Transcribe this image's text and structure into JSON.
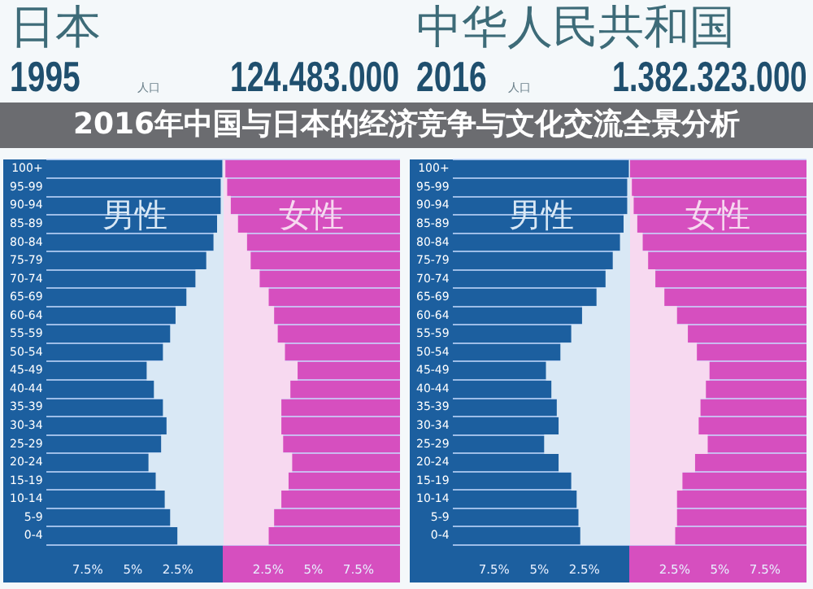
{
  "chart_data": [
    {
      "type": "bar",
      "orientation": "horizontal",
      "title": "日本",
      "subtitle": "1995",
      "annotations": [
        "人口",
        "124.483.000",
        "2016年中国与日本的经济竞争与文化交流全景分析"
      ],
      "categories": [
        "100+",
        "95-99",
        "90-94",
        "85-89",
        "80-84",
        "75-79",
        "70-74",
        "65-69",
        "60-64",
        "55-59",
        "50-54",
        "45-49",
        "40-44",
        "35-39",
        "30-34",
        "25-29",
        "20-24",
        "15-19",
        "10-14",
        "5-9",
        "0-4"
      ],
      "series": [
        {
          "name": "男性",
          "color": "#d9e8f5",
          "values": [
            0,
            -0.1,
            -0.1,
            -0.3,
            -0.5,
            -0.9,
            -1.5,
            -2.0,
            -2.6,
            -2.9,
            -3.3,
            -4.2,
            -3.8,
            -3.3,
            -3.1,
            -3.4,
            -4.1,
            -3.7,
            -3.2,
            -2.9,
            -2.5
          ]
        },
        {
          "name": "女性",
          "color": "#f7d9f0",
          "values": [
            0.1,
            0.2,
            0.4,
            0.8,
            1.3,
            1.5,
            2.0,
            2.5,
            2.8,
            3.0,
            3.4,
            4.1,
            3.7,
            3.2,
            3.2,
            3.3,
            3.8,
            3.6,
            3.2,
            2.8,
            2.5
          ]
        }
      ],
      "stacked": true,
      "xlim": [
        -9.8,
        9.8
      ],
      "xticks": [
        {
          "value": -7.5,
          "label": "7.5%"
        },
        {
          "value": -5,
          "label": "5%"
        },
        {
          "value": -2.5,
          "label": "2.5%"
        },
        {
          "value": 2.5,
          "label": "2.5%"
        },
        {
          "value": 5,
          "label": "5%"
        },
        {
          "value": 7.5,
          "label": "7.5%"
        }
      ],
      "grid": "y"
    },
    {
      "type": "bar",
      "orientation": "horizontal",
      "title": "中华人民共和国",
      "subtitle": "2016",
      "annotations": [
        "人口",
        "1.382.323.000"
      ],
      "categories": [
        "100+",
        "95-99",
        "90-94",
        "85-89",
        "80-84",
        "75-79",
        "70-74",
        "65-69",
        "60-64",
        "55-59",
        "50-54",
        "45-49",
        "40-44",
        "35-39",
        "30-34",
        "25-29",
        "20-24",
        "15-19",
        "10-14",
        "5-9",
        "0-4"
      ],
      "series": [
        {
          "name": "男性",
          "color": "#d9e8f5",
          "values": [
            0,
            -0.1,
            -0.1,
            -0.3,
            -0.5,
            -0.9,
            -1.3,
            -1.8,
            -2.6,
            -3.2,
            -3.8,
            -4.6,
            -4.3,
            -4.0,
            -3.9,
            -4.7,
            -3.9,
            -3.2,
            -2.9,
            -2.8,
            -2.7
          ]
        },
        {
          "name": "女性",
          "color": "#f7d9f0",
          "values": [
            0,
            0.1,
            0.2,
            0.4,
            0.7,
            1.0,
            1.4,
            1.9,
            2.6,
            3.2,
            3.7,
            4.4,
            4.2,
            3.9,
            3.8,
            4.3,
            3.6,
            2.9,
            2.6,
            2.6,
            2.5
          ]
        }
      ],
      "stacked": true,
      "xlim": [
        -9.8,
        9.8
      ],
      "xticks": [
        {
          "value": -7.5,
          "label": "7.5%"
        },
        {
          "value": -5,
          "label": "5%"
        },
        {
          "value": -2.5,
          "label": "2.5%"
        },
        {
          "value": 2.5,
          "label": "2.5%"
        },
        {
          "value": 5,
          "label": "5%"
        },
        {
          "value": 7.5,
          "label": "7.5%"
        }
      ],
      "grid": "y"
    }
  ]
}
